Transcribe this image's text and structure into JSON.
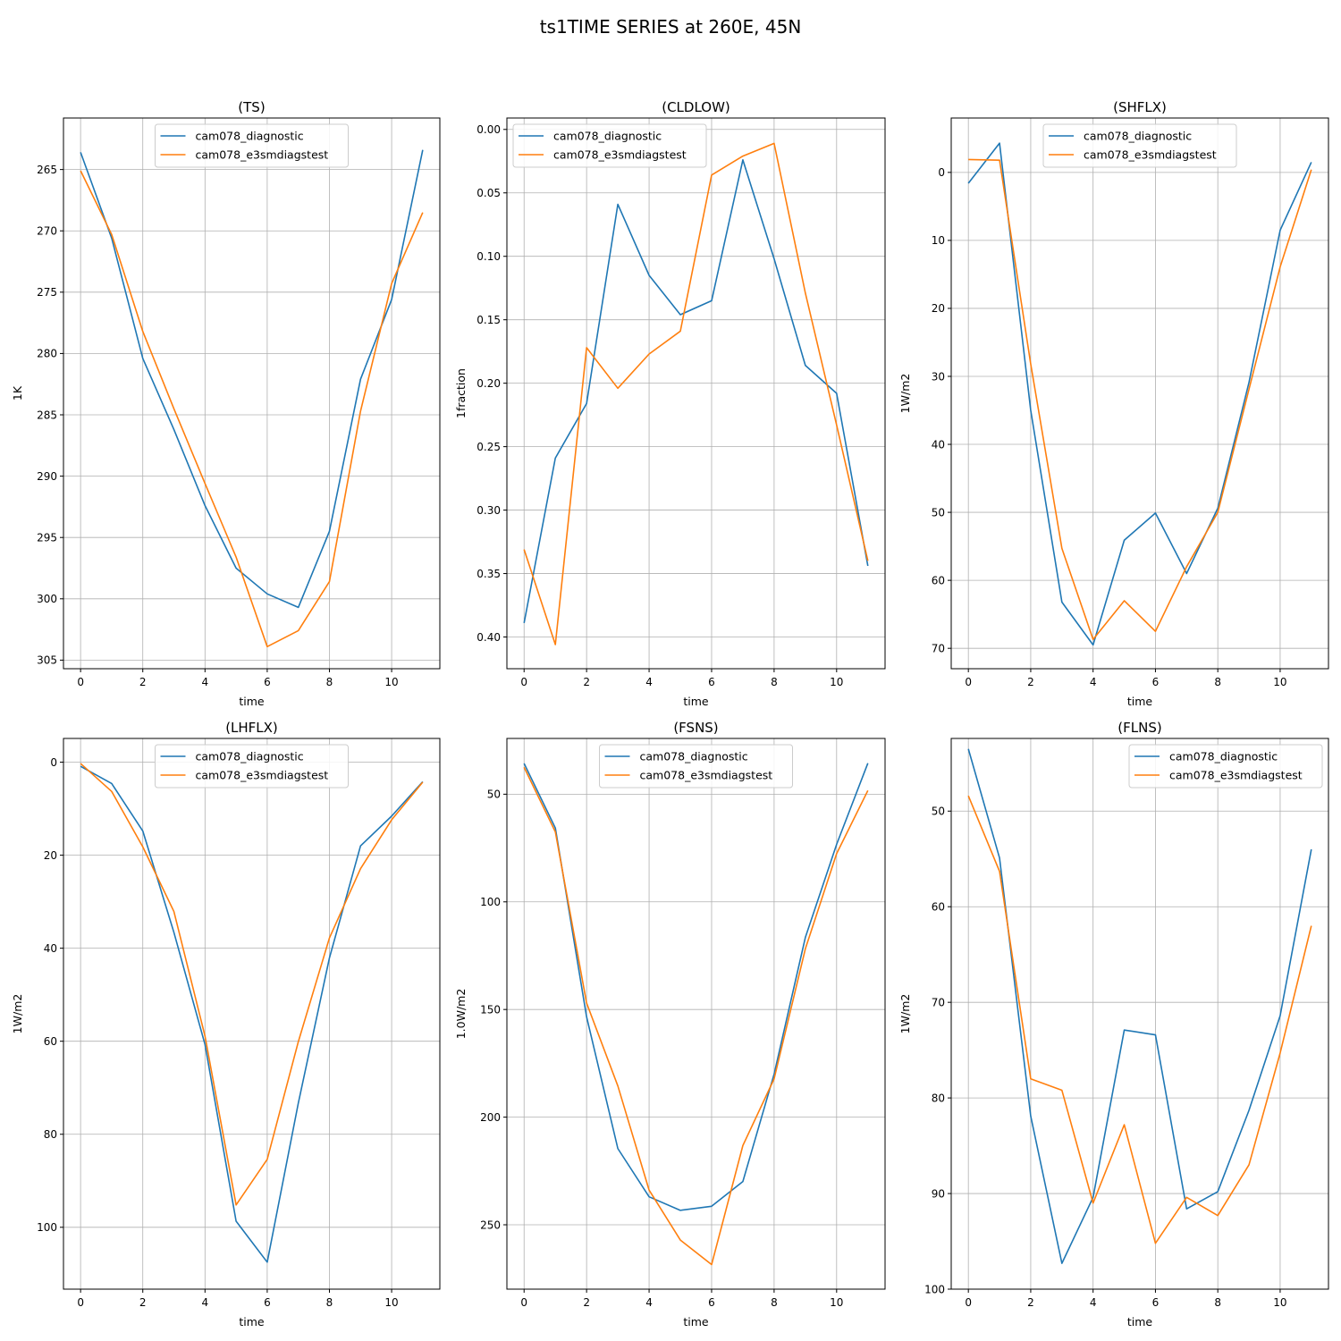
{
  "suptitle": "ts1TIME SERIES at 260E, 45N",
  "colors": {
    "diagnostic": "#1f77b4",
    "e3smdiagstest": "#ff7f0e",
    "grid": "#b0b0b0"
  },
  "chart_data": [
    {
      "type": "line",
      "title": "(TS)",
      "xlabel": "time",
      "ylabel": "1K",
      "ylim": [
        305.7,
        260.8
      ],
      "yticks": [
        265,
        270,
        275,
        280,
        285,
        290,
        295,
        300,
        305
      ],
      "xticks": [
        0,
        2,
        4,
        6,
        8,
        10
      ],
      "legend": "top-center",
      "x": [
        0,
        1,
        2,
        3,
        4,
        5,
        6,
        7,
        8,
        9,
        10,
        11
      ],
      "series": [
        {
          "name": "cam078_diagnostic",
          "color": "#1f77b4",
          "values": [
            263.6,
            270.6,
            280.4,
            286.2,
            292.4,
            297.5,
            299.6,
            300.7,
            294.5,
            282.1,
            275.6,
            263.4
          ]
        },
        {
          "name": "cam078_e3smdiagstest",
          "color": "#ff7f0e",
          "values": [
            265.1,
            270.3,
            278.2,
            284.5,
            290.6,
            296.6,
            303.9,
            302.6,
            298.6,
            284.7,
            274.3,
            268.5
          ]
        }
      ]
    },
    {
      "type": "line",
      "title": "(CLDLOW)",
      "xlabel": "time",
      "ylabel": "1fraction",
      "ylim": [
        0.425,
        -0.009
      ],
      "yticks": [
        0.0,
        0.05,
        0.1,
        0.15,
        0.2,
        0.25,
        0.3,
        0.35,
        0.4
      ],
      "yticklabels": [
        "0.00",
        "0.05",
        "0.10",
        "0.15",
        "0.20",
        "0.25",
        "0.30",
        "0.35",
        "0.40"
      ],
      "xticks": [
        0,
        2,
        4,
        6,
        8,
        10
      ],
      "legend": "top-left",
      "x": [
        0,
        1,
        2,
        3,
        4,
        5,
        6,
        7,
        8,
        9,
        10,
        11
      ],
      "series": [
        {
          "name": "cam078_diagnostic",
          "color": "#1f77b4",
          "values": [
            0.389,
            0.259,
            0.216,
            0.059,
            0.115,
            0.146,
            0.135,
            0.024,
            0.102,
            0.186,
            0.208,
            0.344
          ]
        },
        {
          "name": "cam078_e3smdiagstest",
          "color": "#ff7f0e",
          "values": [
            0.331,
            0.406,
            0.172,
            0.204,
            0.177,
            0.159,
            0.036,
            0.021,
            0.011,
            0.129,
            0.233,
            0.34
          ]
        }
      ]
    },
    {
      "type": "line",
      "title": "(SHFLX)",
      "xlabel": "time",
      "ylabel": "1W/m2",
      "ylim": [
        73.0,
        -8.0
      ],
      "yticks": [
        0,
        10,
        20,
        30,
        40,
        50,
        60,
        70
      ],
      "xticks": [
        0,
        2,
        4,
        6,
        8,
        10
      ],
      "legend": "top-center",
      "x": [
        0,
        1,
        2,
        3,
        4,
        5,
        6,
        7,
        8,
        9,
        10,
        11
      ],
      "series": [
        {
          "name": "cam078_diagnostic",
          "color": "#1f77b4",
          "values": [
            1.6,
            -4.3,
            35.0,
            63.2,
            69.5,
            54.1,
            50.1,
            59.0,
            49.4,
            30.9,
            8.5,
            -1.5
          ]
        },
        {
          "name": "cam078_e3smdiagstest",
          "color": "#ff7f0e",
          "values": [
            -1.9,
            -1.8,
            28.2,
            55.3,
            68.7,
            63.0,
            67.5,
            58.0,
            50.0,
            31.9,
            13.9,
            -0.4
          ]
        }
      ]
    },
    {
      "type": "line",
      "title": "(LHFLX)",
      "xlabel": "time",
      "ylabel": "1W/m2",
      "ylim": [
        113.3,
        -5.1
      ],
      "yticks": [
        0,
        20,
        40,
        60,
        80,
        100
      ],
      "xticks": [
        0,
        2,
        4,
        6,
        8,
        10
      ],
      "legend": "top-center",
      "x": [
        0,
        1,
        2,
        3,
        4,
        5,
        6,
        7,
        8,
        9,
        10,
        11
      ],
      "series": [
        {
          "name": "cam078_diagnostic",
          "color": "#1f77b4",
          "values": [
            0.9,
            4.6,
            14.8,
            36.6,
            60.7,
            98.7,
            107.5,
            73.3,
            42.1,
            18.0,
            11.6,
            4.2
          ]
        },
        {
          "name": "cam078_e3smdiagstest",
          "color": "#ff7f0e",
          "values": [
            0.3,
            6.3,
            18.2,
            32.1,
            58.9,
            95.2,
            85.4,
            60.1,
            37.8,
            22.9,
            12.4,
            4.3
          ]
        }
      ]
    },
    {
      "type": "line",
      "title": "(FSNS)",
      "xlabel": "time",
      "ylabel": "1.0W/m2",
      "ylim": [
        279.9,
        24.1
      ],
      "yticks": [
        50,
        100,
        150,
        200,
        250
      ],
      "xticks": [
        0,
        2,
        4,
        6,
        8,
        10
      ],
      "legend": "top-center",
      "x": [
        0,
        1,
        2,
        3,
        4,
        5,
        6,
        7,
        8,
        9,
        10,
        11
      ],
      "series": [
        {
          "name": "cam078_diagnostic",
          "color": "#1f77b4",
          "values": [
            35.7,
            65.7,
            153.4,
            214.6,
            237.0,
            243.3,
            241.4,
            229.9,
            180.0,
            116.5,
            73.3,
            35.6
          ]
        },
        {
          "name": "cam078_e3smdiagstest",
          "color": "#ff7f0e",
          "values": [
            37.5,
            67.5,
            147.0,
            185.5,
            233.9,
            257.1,
            268.5,
            213.2,
            182.2,
            121.8,
            77.6,
            48.3
          ]
        }
      ]
    },
    {
      "type": "line",
      "title": "(FLNS)",
      "xlabel": "time",
      "ylabel": "1W/m2",
      "ylim": [
        100.0,
        42.4
      ],
      "yticks": [
        50,
        60,
        70,
        80,
        90,
        100
      ],
      "xticks": [
        0,
        2,
        4,
        6,
        8,
        10
      ],
      "legend": "top-right",
      "x": [
        0,
        1,
        2,
        3,
        4,
        5,
        6,
        7,
        8,
        9,
        10,
        11
      ],
      "series": [
        {
          "name": "cam078_diagnostic",
          "color": "#1f77b4",
          "values": [
            43.5,
            54.9,
            81.9,
            97.3,
            90.4,
            72.9,
            73.4,
            91.6,
            89.8,
            81.3,
            71.4,
            54.0
          ]
        },
        {
          "name": "cam078_e3smdiagstest",
          "color": "#ff7f0e",
          "values": [
            48.4,
            56.3,
            78.0,
            79.2,
            91.0,
            82.8,
            95.2,
            90.4,
            92.3,
            87.0,
            75.3,
            62.0
          ]
        }
      ]
    }
  ]
}
